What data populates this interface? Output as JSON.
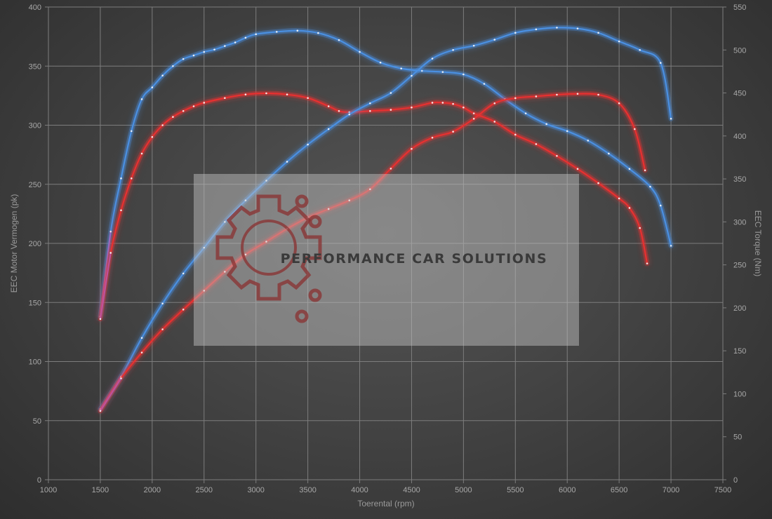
{
  "chart_data": {
    "type": "line",
    "xlabel": "Toerental (rpm)",
    "ylabel_left": "EEC Motor Vermogen (pk)",
    "ylabel_right": "EEC Torque (Nm)",
    "xlim": [
      1000,
      7500
    ],
    "ylim_left": [
      0,
      400
    ],
    "ylim_right": [
      0,
      550
    ],
    "x_ticks": [
      1000,
      1500,
      2000,
      2500,
      3000,
      3500,
      4000,
      4500,
      5000,
      5500,
      6000,
      6500,
      7000,
      7500
    ],
    "y_ticks_left": [
      0,
      50,
      100,
      150,
      200,
      250,
      300,
      350,
      400
    ],
    "y_ticks_right": [
      0,
      50,
      100,
      150,
      200,
      250,
      300,
      350,
      400,
      450,
      500,
      550
    ],
    "grid": true,
    "colors": {
      "tuned": "#4a90e2",
      "stock": "#e83030",
      "stock_start": "#b060c8"
    },
    "series": [
      {
        "axis": "left",
        "style": "tuned",
        "points": [
          [
            1500,
            138
          ],
          [
            1600,
            210
          ],
          [
            1700,
            255
          ],
          [
            1800,
            295
          ],
          [
            1900,
            322
          ],
          [
            2000,
            332
          ],
          [
            2100,
            342
          ],
          [
            2200,
            350
          ],
          [
            2300,
            356
          ],
          [
            2400,
            359
          ],
          [
            2500,
            362
          ],
          [
            2600,
            364
          ],
          [
            2700,
            367
          ],
          [
            2800,
            370
          ],
          [
            2900,
            374
          ],
          [
            3000,
            377
          ],
          [
            3200,
            379
          ],
          [
            3400,
            380
          ],
          [
            3600,
            378
          ],
          [
            3800,
            372
          ],
          [
            4000,
            362
          ],
          [
            4200,
            353
          ],
          [
            4400,
            348
          ],
          [
            4600,
            346
          ],
          [
            4800,
            345
          ],
          [
            5000,
            343
          ],
          [
            5200,
            335
          ],
          [
            5400,
            322
          ],
          [
            5600,
            310
          ],
          [
            5800,
            301
          ],
          [
            6000,
            295
          ],
          [
            6200,
            287
          ],
          [
            6400,
            276
          ],
          [
            6600,
            263
          ],
          [
            6800,
            248
          ],
          [
            6900,
            232
          ],
          [
            7000,
            198
          ]
        ]
      },
      {
        "axis": "left",
        "style": "stock",
        "points": [
          [
            1500,
            136
          ],
          [
            1600,
            192
          ],
          [
            1700,
            228
          ],
          [
            1800,
            255
          ],
          [
            1900,
            276
          ],
          [
            2000,
            290
          ],
          [
            2100,
            300
          ],
          [
            2200,
            307
          ],
          [
            2300,
            312
          ],
          [
            2400,
            316
          ],
          [
            2500,
            319
          ],
          [
            2700,
            323
          ],
          [
            2900,
            326
          ],
          [
            3100,
            327
          ],
          [
            3300,
            326
          ],
          [
            3500,
            323
          ],
          [
            3700,
            316
          ],
          [
            3800,
            312
          ],
          [
            3900,
            311
          ],
          [
            4100,
            312
          ],
          [
            4300,
            313
          ],
          [
            4500,
            315
          ],
          [
            4700,
            319
          ],
          [
            4800,
            319
          ],
          [
            4900,
            318
          ],
          [
            5000,
            315
          ],
          [
            5100,
            310
          ],
          [
            5300,
            303
          ],
          [
            5500,
            292
          ],
          [
            5700,
            284
          ],
          [
            5900,
            274
          ],
          [
            6100,
            263
          ],
          [
            6300,
            251
          ],
          [
            6500,
            238
          ],
          [
            6600,
            230
          ],
          [
            6700,
            213
          ],
          [
            6770,
            183
          ]
        ]
      },
      {
        "axis": "right",
        "style": "tuned",
        "points": [
          [
            1500,
            82
          ],
          [
            1700,
            120
          ],
          [
            1900,
            165
          ],
          [
            2100,
            205
          ],
          [
            2300,
            240
          ],
          [
            2500,
            270
          ],
          [
            2700,
            300
          ],
          [
            2900,
            325
          ],
          [
            3100,
            348
          ],
          [
            3300,
            370
          ],
          [
            3500,
            390
          ],
          [
            3700,
            408
          ],
          [
            3900,
            425
          ],
          [
            4100,
            438
          ],
          [
            4300,
            450
          ],
          [
            4500,
            470
          ],
          [
            4700,
            490
          ],
          [
            4900,
            500
          ],
          [
            5100,
            505
          ],
          [
            5300,
            512
          ],
          [
            5500,
            520
          ],
          [
            5700,
            524
          ],
          [
            5900,
            526
          ],
          [
            6100,
            525
          ],
          [
            6300,
            520
          ],
          [
            6500,
            510
          ],
          [
            6700,
            500
          ],
          [
            6900,
            485
          ],
          [
            7000,
            420
          ]
        ]
      },
      {
        "axis": "right",
        "style": "stock",
        "points": [
          [
            1500,
            80
          ],
          [
            1700,
            118
          ],
          [
            1900,
            148
          ],
          [
            2100,
            175
          ],
          [
            2300,
            198
          ],
          [
            2500,
            220
          ],
          [
            2700,
            242
          ],
          [
            2900,
            262
          ],
          [
            3100,
            277
          ],
          [
            3300,
            292
          ],
          [
            3500,
            305
          ],
          [
            3700,
            315
          ],
          [
            3900,
            325
          ],
          [
            4100,
            338
          ],
          [
            4300,
            362
          ],
          [
            4500,
            385
          ],
          [
            4700,
            398
          ],
          [
            4900,
            405
          ],
          [
            5100,
            420
          ],
          [
            5300,
            438
          ],
          [
            5500,
            444
          ],
          [
            5700,
            446
          ],
          [
            5900,
            448
          ],
          [
            6100,
            449
          ],
          [
            6300,
            448
          ],
          [
            6500,
            438
          ],
          [
            6650,
            408
          ],
          [
            6750,
            360
          ]
        ]
      }
    ]
  },
  "watermark": {
    "text": "PERFORMANCE CAR SOLUTIONS",
    "logo_icon": "gear-circuit-icon"
  }
}
